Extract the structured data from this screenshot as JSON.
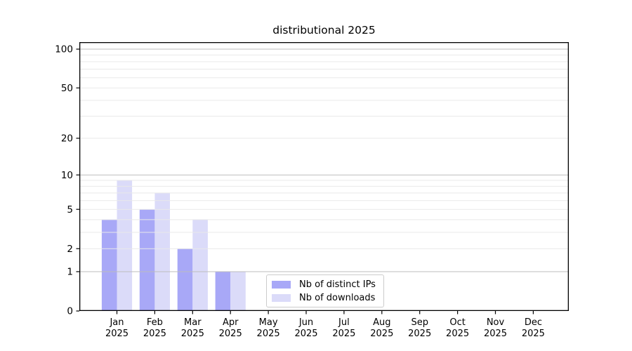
{
  "figure": {
    "title": "distributional 2025",
    "background": "#ffffff"
  },
  "chart_data": {
    "type": "bar",
    "title": "distributional 2025",
    "categories": [
      "Jan",
      "Feb",
      "Mar",
      "Apr",
      "May",
      "Jun",
      "Jul",
      "Aug",
      "Sep",
      "Oct",
      "Nov",
      "Dec"
    ],
    "category_year": "2025",
    "series": [
      {
        "name": "Nb of distinct IPs",
        "color": "#a8a8f7",
        "values": [
          4,
          5,
          2,
          1,
          0,
          0,
          0,
          0,
          0,
          0,
          0,
          0
        ]
      },
      {
        "name": "Nb of downloads",
        "color": "#dbdbf9",
        "values": [
          9,
          7,
          4,
          1,
          0,
          0,
          0,
          0,
          0,
          0,
          0,
          0
        ]
      }
    ],
    "xlabel": "",
    "ylabel": "",
    "scale": "log1p",
    "ylim": [
      0,
      100
    ],
    "yticks": [
      0,
      1,
      2,
      5,
      10,
      20,
      50,
      100
    ],
    "major_gridlines": [
      1,
      10,
      100
    ],
    "minor_gridlines": [
      2,
      3,
      4,
      5,
      6,
      7,
      8,
      9,
      20,
      30,
      40,
      50,
      60,
      70,
      80,
      90
    ],
    "grid": true,
    "grid_above_bars": true,
    "legend_position": "inside-bottom-center"
  },
  "colors": {
    "axis": "#000000",
    "text": "#000000",
    "grid_major": "#bdbdbd",
    "grid_minor": "#e9e9e9",
    "legend_border": "#cccccc",
    "background": "#ffffff"
  }
}
